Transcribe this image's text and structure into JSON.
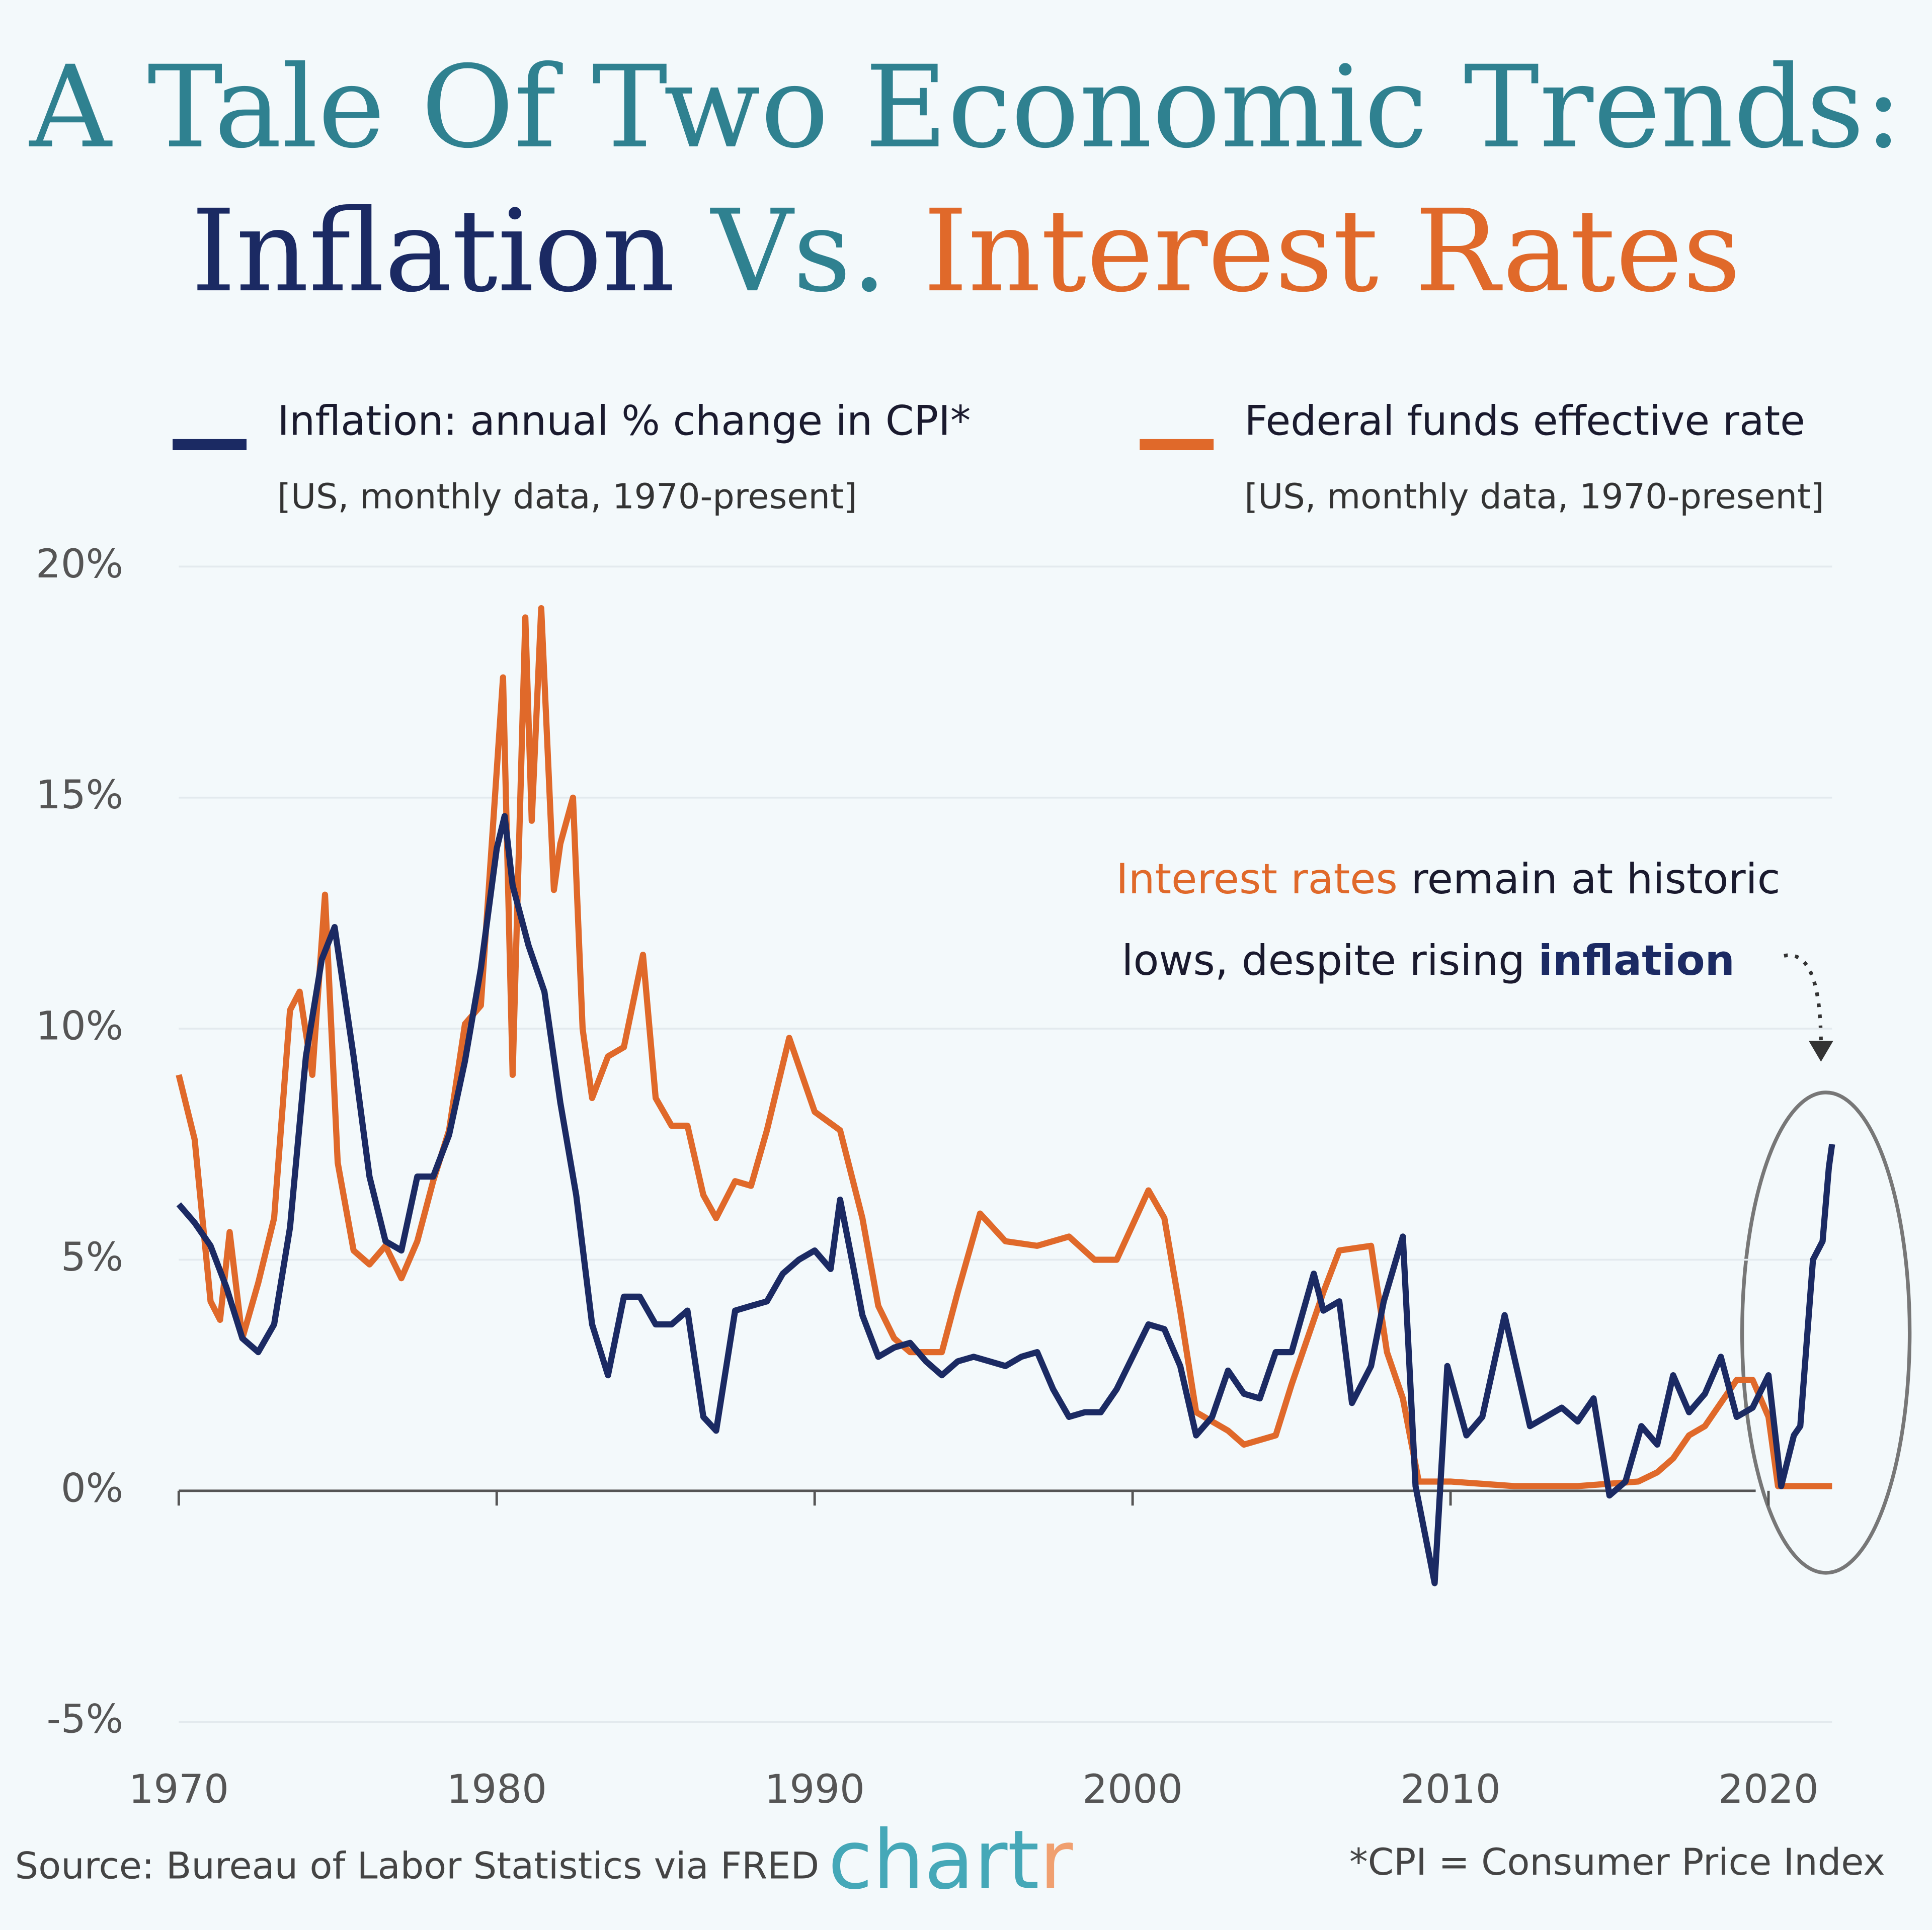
{
  "chart_data": {
    "type": "line",
    "title": "A Tale Of Two Economic Trends:",
    "subtitle_parts": [
      "Inflation",
      "Vs.",
      "Interest Rates"
    ],
    "xlim": [
      1970,
      2022
    ],
    "xticks": [
      1970,
      1980,
      1990,
      2000,
      2010,
      2020
    ],
    "ylim": [
      -5,
      20
    ],
    "yticks": [
      {
        "value": -5,
        "label": "-5%"
      },
      {
        "value": 0,
        "label": "0%"
      },
      {
        "value": 5,
        "label": "5%"
      },
      {
        "value": 10,
        "label": "10%"
      },
      {
        "value": 15,
        "label": "15%"
      },
      {
        "value": 20,
        "label": "20%"
      }
    ],
    "grid": true,
    "series": [
      {
        "name": "Inflation: annual % change in CPI*",
        "note": "[US, monthly data, 1970-present]",
        "color": "#1b2a63",
        "x": [
          1970.0,
          1970.5,
          1971.0,
          1971.5,
          1972.0,
          1972.5,
          1973.0,
          1973.5,
          1974.0,
          1974.5,
          1974.9,
          1975.5,
          1976.0,
          1976.5,
          1977.0,
          1977.5,
          1978.0,
          1978.5,
          1979.0,
          1979.5,
          1980.0,
          1980.25,
          1980.5,
          1981.0,
          1981.5,
          1982.0,
          1982.5,
          1983.0,
          1983.5,
          1984.0,
          1984.5,
          1985.0,
          1985.5,
          1986.0,
          1986.5,
          1986.9,
          1987.5,
          1988.0,
          1988.5,
          1989.0,
          1989.5,
          1990.0,
          1990.5,
          1990.8,
          1991.2,
          1991.5,
          1992.0,
          1992.5,
          1993.0,
          1993.5,
          1994.0,
          1994.5,
          1995.0,
          1995.5,
          1996.0,
          1996.5,
          1997.0,
          1997.5,
          1998.0,
          1998.5,
          1999.0,
          1999.5,
          2000.0,
          2000.5,
          2001.0,
          2001.5,
          2002.0,
          2002.5,
          2003.0,
          2003.5,
          2004.0,
          2004.5,
          2005.0,
          2005.7,
          2006.0,
          2006.5,
          2006.9,
          2007.5,
          2007.9,
          2008.5,
          2008.9,
          2009.5,
          2009.9,
          2010.5,
          2011.0,
          2011.7,
          2012.0,
          2012.5,
          2013.0,
          2013.5,
          2014.0,
          2014.5,
          2015.0,
          2015.5,
          2016.0,
          2016.5,
          2017.0,
          2017.5,
          2018.0,
          2018.5,
          2019.0,
          2019.5,
          2020.0,
          2020.4,
          2020.8,
          2021.0,
          2021.4,
          2021.7,
          2021.9,
          2022.0
        ],
        "values": [
          6.2,
          5.8,
          5.3,
          4.4,
          3.3,
          3.0,
          3.6,
          5.7,
          9.4,
          11.5,
          12.2,
          9.4,
          6.8,
          5.4,
          5.2,
          6.8,
          6.8,
          7.7,
          9.3,
          11.3,
          13.9,
          14.6,
          13.1,
          11.8,
          10.8,
          8.4,
          6.4,
          3.6,
          2.5,
          4.2,
          4.2,
          3.6,
          3.6,
          3.9,
          1.6,
          1.3,
          3.9,
          4.0,
          4.1,
          4.7,
          5.0,
          5.2,
          4.8,
          6.3,
          4.9,
          3.8,
          2.9,
          3.1,
          3.2,
          2.8,
          2.5,
          2.8,
          2.9,
          2.8,
          2.7,
          2.9,
          3.0,
          2.2,
          1.6,
          1.7,
          1.7,
          2.2,
          2.9,
          3.6,
          3.5,
          2.7,
          1.2,
          1.6,
          2.6,
          2.1,
          2.0,
          3.0,
          3.0,
          4.7,
          3.9,
          4.1,
          1.9,
          2.7,
          4.1,
          5.5,
          0.1,
          -2.0,
          2.7,
          1.2,
          1.6,
          3.8,
          2.9,
          1.4,
          1.6,
          1.8,
          1.5,
          2.0,
          -0.1,
          0.2,
          1.4,
          1.0,
          2.5,
          1.7,
          2.1,
          2.9,
          1.6,
          1.8,
          2.5,
          0.1,
          1.2,
          1.4,
          5.0,
          5.4,
          7.0,
          7.5
        ]
      },
      {
        "name": "Federal funds effective rate",
        "note": "[US, monthly data, 1970-present]",
        "color": "#e0692a",
        "x": [
          1970.0,
          1970.5,
          1971.0,
          1971.3,
          1971.6,
          1972.0,
          1972.5,
          1973.0,
          1973.5,
          1973.8,
          1974.2,
          1974.6,
          1975.0,
          1975.5,
          1976.0,
          1976.5,
          1977.0,
          1977.5,
          1978.0,
          1978.5,
          1979.0,
          1979.5,
          1980.2,
          1980.5,
          1980.9,
          1981.1,
          1981.4,
          1981.8,
          1982.0,
          1982.4,
          1982.7,
          1983.0,
          1983.5,
          1984.0,
          1984.6,
          1985.0,
          1985.5,
          1986.0,
          1986.5,
          1986.9,
          1987.5,
          1988.0,
          1988.5,
          1989.2,
          1989.7,
          1990.0,
          1990.8,
          1991.5,
          1992.0,
          1992.5,
          1993.0,
          1994.0,
          1994.5,
          1995.2,
          1996.0,
          1997.0,
          1998.0,
          1998.8,
          1999.5,
          2000.5,
          2001.0,
          2001.5,
          2002.0,
          2003.0,
          2003.5,
          2004.5,
          2005.0,
          2006.0,
          2006.5,
          2007.5,
          2008.0,
          2008.5,
          2009.0,
          2010.0,
          2012.0,
          2014.0,
          2015.9,
          2016.5,
          2017.0,
          2017.5,
          2018.0,
          2018.5,
          2019.0,
          2019.5,
          2020.0,
          2020.3,
          2022.0
        ],
        "values": [
          9.0,
          7.6,
          4.1,
          3.7,
          5.6,
          3.3,
          4.5,
          5.9,
          10.4,
          10.8,
          9.0,
          12.9,
          7.1,
          5.2,
          4.9,
          5.3,
          4.6,
          5.4,
          6.7,
          7.8,
          10.1,
          10.5,
          17.6,
          9.0,
          18.9,
          14.5,
          19.1,
          13.0,
          14.0,
          15.0,
          10.0,
          8.5,
          9.4,
          9.6,
          11.6,
          8.5,
          7.9,
          7.9,
          6.4,
          5.9,
          6.7,
          6.6,
          7.8,
          9.8,
          8.8,
          8.2,
          7.8,
          5.9,
          4.0,
          3.3,
          3.0,
          3.0,
          4.3,
          6.0,
          5.4,
          5.3,
          5.5,
          5.0,
          5.0,
          6.5,
          5.9,
          3.9,
          1.7,
          1.3,
          1.0,
          1.2,
          2.3,
          4.3,
          5.2,
          5.3,
          3.0,
          2.0,
          0.2,
          0.2,
          0.1,
          0.1,
          0.2,
          0.4,
          0.7,
          1.2,
          1.4,
          1.9,
          2.4,
          2.4,
          1.6,
          0.1,
          0.1
        ]
      }
    ],
    "annotation": {
      "parts": [
        "Interest rates",
        " remain at historic",
        "lows, despite rising ",
        "inflation"
      ]
    },
    "source": "Source: Bureau of Labor Statistics via FRED",
    "footnote": "*CPI = Consumer Price Index",
    "brand": {
      "main": "chart",
      "accent": "r"
    }
  }
}
